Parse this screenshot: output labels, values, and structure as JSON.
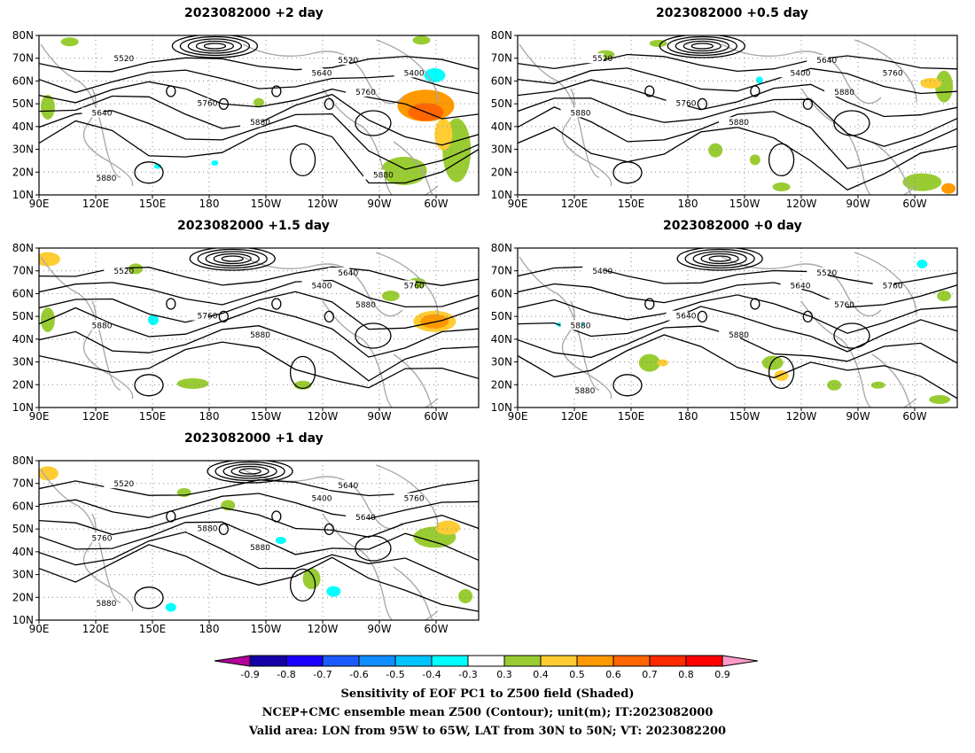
{
  "panels": [
    {
      "id": "p2",
      "title": "2023082000 +2 day",
      "contour_labels": [
        "5520",
        "5520",
        "5640",
        "5400",
        "5760",
        "5760",
        "5640",
        "5880",
        "5880",
        "5880"
      ]
    },
    {
      "id": "p05",
      "title": "2023082000 +0.5 day",
      "contour_labels": [
        "5520",
        "5640",
        "5400",
        "5760",
        "5760",
        "5880",
        "5880",
        "5880"
      ]
    },
    {
      "id": "p15",
      "title": "2023082000 +1.5 day",
      "contour_labels": [
        "5520",
        "5640",
        "5400",
        "5760",
        "5760",
        "5880",
        "5880",
        "5880"
      ]
    },
    {
      "id": "p0",
      "title": "2023082000 +0 day",
      "contour_labels": [
        "5400",
        "5520",
        "5640",
        "5760",
        "5640",
        "5760",
        "5880",
        "5880",
        "5880"
      ]
    },
    {
      "id": "p1",
      "title": "2023082000 +1 day",
      "contour_labels": [
        "5520",
        "5640",
        "5400",
        "5760",
        "5880",
        "5640",
        "5760",
        "5880",
        "5880"
      ]
    }
  ],
  "axes": {
    "lat_ticks": [
      "80N",
      "70N",
      "60N",
      "50N",
      "40N",
      "30N",
      "20N",
      "10N"
    ],
    "lon_ticks": [
      "90E",
      "120E",
      "150E",
      "180",
      "150W",
      "120W",
      "90W",
      "60W"
    ]
  },
  "colorbar": {
    "tick_labels": [
      "-0.9",
      "-0.8",
      "-0.7",
      "-0.6",
      "-0.5",
      "-0.4",
      "-0.3",
      "0.3",
      "0.4",
      "0.5",
      "0.6",
      "0.7",
      "0.8",
      "0.9"
    ],
    "colors": [
      "#b3009a",
      "#1300a6",
      "#1b00ff",
      "#1c5bff",
      "#0f8dff",
      "#00c4ff",
      "#00ffff",
      "#ffffff",
      "#99cc33",
      "#ffcc33",
      "#ff9900",
      "#ff6600",
      "#ff2a00",
      "#ff0000",
      "#ff9ac8"
    ]
  },
  "captions": {
    "line1": "Sensitivity of EOF PC1 to Z500 field (Shaded)",
    "line2": "NCEP+CMC ensemble mean Z500 (Contour); unit(m); IT:2023082000",
    "line3": "Valid area: LON from 95W to 65W, LAT from 30N to 50N; VT: 2023082200"
  }
}
